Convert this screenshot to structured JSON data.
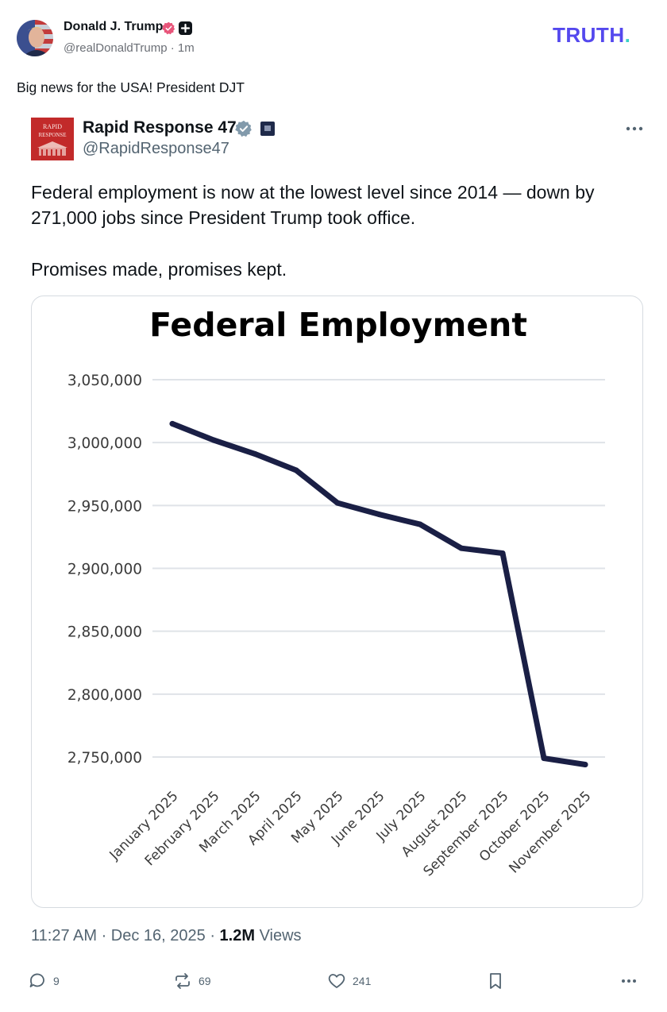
{
  "author": {
    "name": "Donald J. Trump",
    "handle": "@realDonaldTrump",
    "time": "· 1m"
  },
  "brand": {
    "logo_text": "TRUTH",
    "logo_dot": "."
  },
  "post": {
    "text": "Big news for the USA! President DJT"
  },
  "quoted": {
    "logo_text_1": "RAPID",
    "logo_text_2": "RESPONSE",
    "name": "Rapid Response 47",
    "handle": "@RapidResponse47",
    "text": "Federal employment is now at the lowest level since 2014 — down by 271,000 jobs since President Trump took office.",
    "text2": "Promises made, promises kept.",
    "timestamp": "11:27 AM · Dec 16, 2025 · ",
    "views_count": "1.2M",
    "views_label": " Views"
  },
  "chart_data": {
    "type": "line",
    "title": "Federal Employment",
    "xlabel": "",
    "ylabel": "",
    "categories": [
      "January 2025",
      "February 2025",
      "March 2025",
      "April 2025",
      "May 2025",
      "June 2025",
      "July 2025",
      "August 2025",
      "September 2025",
      "October 2025",
      "November 2025"
    ],
    "series": [
      {
        "name": "Federal Employment",
        "color": "#1a1f45",
        "values": [
          3015000,
          3002000,
          2991000,
          2978000,
          2952000,
          2943000,
          2935000,
          2916000,
          2912000,
          2749000,
          2744000
        ]
      }
    ],
    "yticks": [
      3050000,
      3000000,
      2950000,
      2900000,
      2850000,
      2800000,
      2750000
    ],
    "ytick_labels": [
      "3,050,000",
      "3,000,000",
      "2,950,000",
      "2,900,000",
      "2,850,000",
      "2,800,000",
      "2,750,000"
    ],
    "ylim": [
      2750000,
      3050000
    ],
    "grid": true
  },
  "actions": {
    "replies": "9",
    "reposts": "69",
    "likes": "241"
  },
  "colors": {
    "brand": "#5448ee",
    "brand_dot": "#3ad1c6",
    "line": "#1a1f45",
    "grid": "#dfe3e8",
    "verified_blue": "#1d9bf0",
    "verified_pink": "#e8557a"
  }
}
